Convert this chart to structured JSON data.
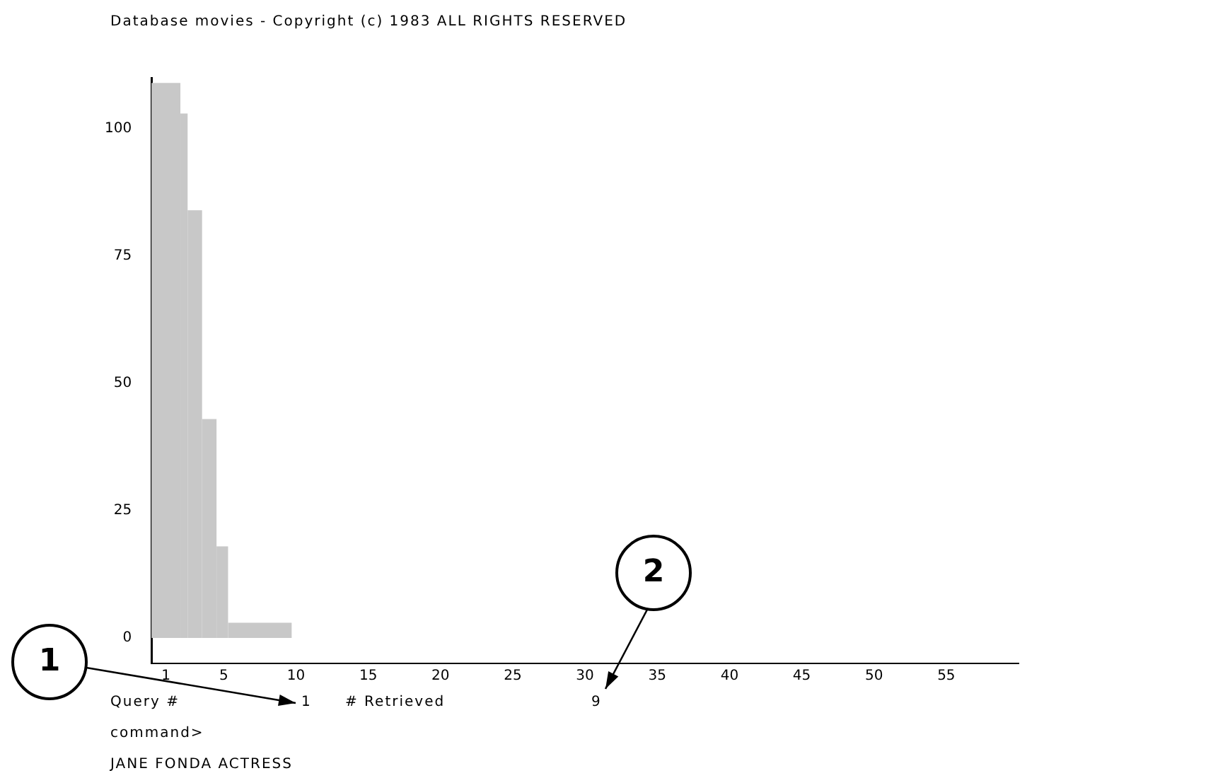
{
  "chart_data": {
    "type": "histogram",
    "title": "Database movies - Copyright (c) 1983 ALL RIGHTS RESERVED",
    "bins": [
      0,
      2,
      2.5,
      3.5,
      4.5,
      5.3,
      9.7
    ],
    "values": [
      109,
      103,
      84,
      43,
      18,
      3
    ],
    "color": "#c8c8c8",
    "xlim": [
      0,
      60
    ],
    "xticks": [
      1,
      5,
      10,
      15,
      20,
      25,
      30,
      35,
      40,
      45,
      50,
      55
    ],
    "ylim": [
      -5,
      110
    ],
    "yticks": [
      0,
      25,
      50,
      75,
      100
    ],
    "grid": false,
    "legend": false,
    "annotations": [
      "1",
      "2",
      "Query #",
      "1",
      "# Retrieved",
      "9",
      "command>",
      "JANE FONDA ACTRESS"
    ]
  }
}
